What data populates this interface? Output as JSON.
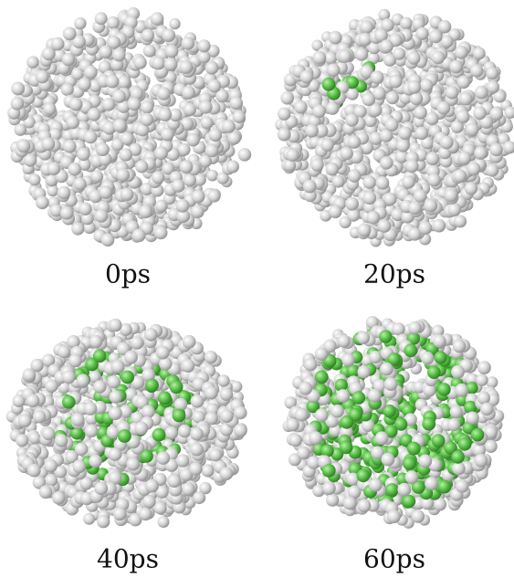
{
  "panels": [
    {
      "label": "0ps"
    },
    {
      "label": "20ps"
    },
    {
      "label": "40ps"
    },
    {
      "label": "60ps"
    }
  ]
}
